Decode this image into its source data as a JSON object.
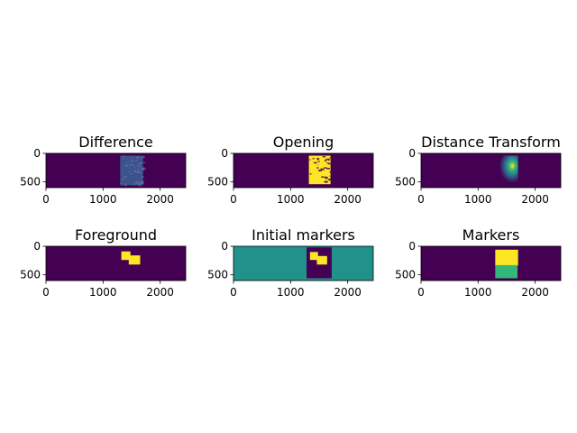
{
  "colors": {
    "background": "#440154",
    "mid": "#21918c",
    "high": "#fde725",
    "green": "#35b779",
    "teal": "#2c728e",
    "blue": "#3b528b"
  },
  "chart_data": [
    {
      "type": "heatmap",
      "title": "Difference",
      "xlim": [
        0,
        2448
      ],
      "ylim": [
        600,
        0
      ],
      "xticks": [
        0,
        1000,
        2000
      ],
      "yticks": [
        0,
        500
      ],
      "regions": [
        {
          "x0": 1300,
          "x1": 1700,
          "y0": 40,
          "y1": 560,
          "color": "#3b528b",
          "texture": "noise"
        }
      ]
    },
    {
      "type": "heatmap",
      "title": "Opening",
      "xlim": [
        0,
        2448
      ],
      "ylim": [
        600,
        0
      ],
      "xticks": [
        0,
        1000,
        2000
      ],
      "yticks": [
        0,
        500
      ],
      "regions": [
        {
          "x0": 1320,
          "x1": 1700,
          "y0": 40,
          "y1": 540,
          "color": "#fde725",
          "texture": "speckle"
        }
      ]
    },
    {
      "type": "heatmap",
      "title": "Distance Transform",
      "xlim": [
        0,
        2448
      ],
      "ylim": [
        600,
        0
      ],
      "xticks": [
        0,
        1000,
        2000
      ],
      "yticks": [
        0,
        500
      ],
      "regions": [
        {
          "x0": 1320,
          "x1": 1700,
          "y0": 40,
          "y1": 540,
          "color": "#3b528b",
          "texture": "gradient",
          "peak_x": 1600,
          "peak_y": 220
        }
      ]
    },
    {
      "type": "heatmap",
      "title": "Foreground",
      "xlim": [
        0,
        2448
      ],
      "ylim": [
        600,
        0
      ],
      "xticks": [
        0,
        1000,
        2000
      ],
      "yticks": [
        0,
        500
      ],
      "regions": [
        {
          "x0": 1320,
          "x1": 1480,
          "y0": 90,
          "y1": 240,
          "color": "#fde725"
        },
        {
          "x0": 1450,
          "x1": 1650,
          "y0": 160,
          "y1": 320,
          "color": "#fde725"
        }
      ]
    },
    {
      "type": "heatmap",
      "title": "Initial markers",
      "xlim": [
        0,
        2448
      ],
      "ylim": [
        600,
        0
      ],
      "xticks": [
        0,
        1000,
        2000
      ],
      "yticks": [
        0,
        500
      ],
      "background": "#21918c",
      "regions": [
        {
          "x0": 1280,
          "x1": 1720,
          "y0": 20,
          "y1": 560,
          "color": "#440154"
        },
        {
          "x0": 1340,
          "x1": 1480,
          "y0": 100,
          "y1": 240,
          "color": "#fde725"
        },
        {
          "x0": 1460,
          "x1": 1640,
          "y0": 170,
          "y1": 320,
          "color": "#fde725"
        }
      ]
    },
    {
      "type": "heatmap",
      "title": "Markers",
      "xlim": [
        0,
        2448
      ],
      "ylim": [
        600,
        0
      ],
      "xticks": [
        0,
        1000,
        2000
      ],
      "yticks": [
        0,
        500
      ],
      "regions": [
        {
          "x0": 1300,
          "x1": 1700,
          "y0": 60,
          "y1": 340,
          "color": "#fde725"
        },
        {
          "x0": 1300,
          "x1": 1690,
          "y0": 330,
          "y1": 560,
          "color": "#35b779"
        }
      ]
    }
  ]
}
